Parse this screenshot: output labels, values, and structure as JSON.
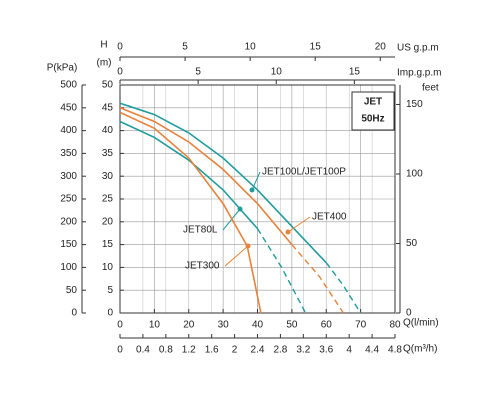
{
  "chart_data": {
    "type": "line",
    "y_label": "H",
    "y_unit": "(m)",
    "ylim": [
      0,
      50
    ],
    "yticks": [
      0,
      5,
      10,
      15,
      20,
      25,
      30,
      35,
      40,
      45,
      50
    ],
    "x_label": "Q(l/min)",
    "xlim": [
      0,
      80
    ],
    "xticks": [
      0,
      10,
      20,
      30,
      40,
      50,
      60,
      70,
      80
    ],
    "p_axis": {
      "label": "P(kPa)",
      "lim": [
        0,
        500
      ],
      "ticks": [
        0,
        50,
        100,
        150,
        200,
        250,
        300,
        350,
        400,
        450,
        500
      ]
    },
    "feet_axis": {
      "label": "feet",
      "lim": [
        0,
        164
      ],
      "ticks": [
        0,
        50,
        100,
        150
      ]
    },
    "us_gpm_axis": {
      "label": "US g.p.m",
      "lim": [
        0,
        21.13
      ],
      "ticks": [
        0,
        5,
        10,
        15,
        20
      ]
    },
    "imp_gpm_axis": {
      "label": "Imp.g.p.m",
      "lim": [
        0,
        17.6
      ],
      "ticks": [
        0,
        5,
        10,
        15
      ]
    },
    "m3h_axis": {
      "label": "Q(m³/h)",
      "lim": [
        0,
        4.8
      ],
      "ticks": [
        0,
        0.4,
        0.8,
        1.2,
        1.6,
        2,
        2.4,
        2.8,
        3.2,
        3.6,
        4,
        4.4,
        4.8
      ]
    },
    "annotation": [
      "JET",
      "50Hz"
    ],
    "grid": true,
    "series": [
      {
        "name": "JET100L/JET100P",
        "color": "#1f9c9c",
        "x": [
          0,
          10,
          20,
          30,
          40,
          50,
          60
        ],
        "values": [
          46,
          43.5,
          39.5,
          34,
          27,
          19,
          11
        ],
        "dashed_x": [
          60,
          65,
          70
        ],
        "dashed_values": [
          11,
          6,
          0
        ]
      },
      {
        "name": "JET400",
        "color": "#e8823a",
        "x": [
          0,
          10,
          20,
          30,
          40,
          50
        ],
        "values": [
          45,
          42,
          37.5,
          31.5,
          24,
          15
        ],
        "dashed_x": [
          50,
          58,
          65
        ],
        "dashed_values": [
          15,
          8,
          0
        ]
      },
      {
        "name": "JET80L",
        "color": "#1f9c9c",
        "x": [
          0,
          10,
          20,
          30,
          40
        ],
        "values": [
          42,
          38.5,
          33.5,
          27,
          18.5
        ],
        "dashed_x": [
          40,
          47,
          54
        ],
        "dashed_values": [
          18.5,
          10,
          0
        ]
      },
      {
        "name": "JET300",
        "color": "#e8823a",
        "x": [
          0,
          10,
          20,
          30,
          37,
          41
        ],
        "values": [
          44,
          40.5,
          34,
          24,
          14.7,
          0
        ],
        "dashed_x": [],
        "dashed_values": []
      }
    ]
  }
}
